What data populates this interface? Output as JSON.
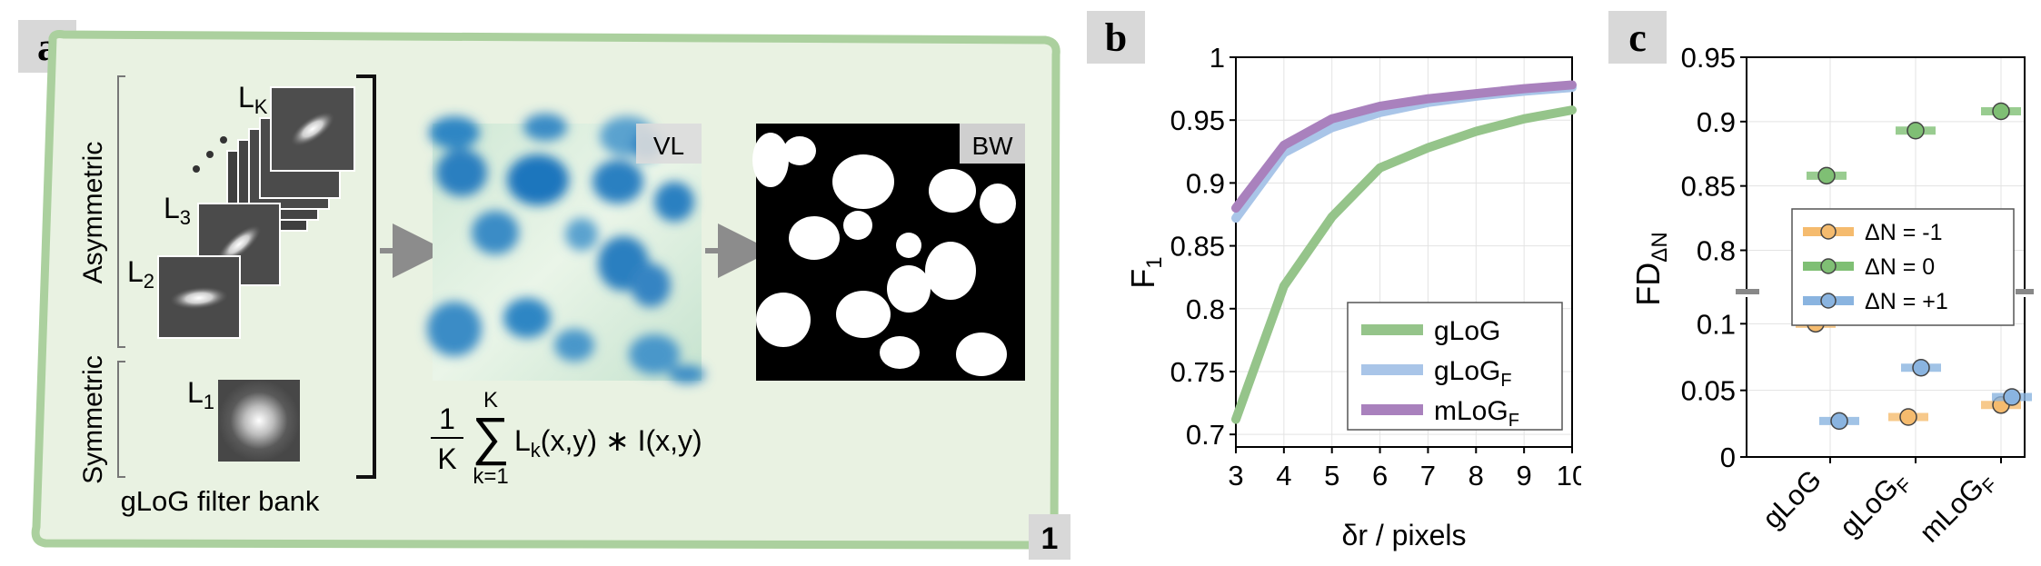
{
  "panel_a": {
    "letter": "a",
    "corner_number": "1",
    "groups": {
      "asymmetric": "Asymmetric",
      "symmetric": "Symmetric"
    },
    "filters": [
      {
        "label": "L",
        "sub": "K",
        "angle": -35
      },
      {
        "label": "L",
        "sub": "3",
        "angle": -55
      },
      {
        "label": "L",
        "sub": "2",
        "angle": -10
      },
      {
        "label": "L",
        "sub": "1",
        "angle": 0
      }
    ],
    "ellipsis": "⋱",
    "caption": "gLoG filter bank",
    "image_vl": "VL",
    "image_bw": "BW",
    "formula": {
      "numerator": "1",
      "denominator": "K",
      "sum_upper": "K",
      "sum_lower": "k=1",
      "sigma": "∑",
      "kernel": "L",
      "kernel_sub": "k",
      "body": "(x,y) ∗ I(x,y)"
    },
    "colors": {
      "frame": "#a6cc98",
      "frame_fill": "#e8f1e0"
    }
  },
  "panel_b": {
    "letter": "b",
    "chart_data": {
      "type": "line",
      "xlabel": "δr / pixels",
      "ylabel": "F",
      "ylabel_sub": "1",
      "x": [
        3,
        4,
        5,
        6,
        7,
        8,
        9,
        10
      ],
      "xlim": [
        3,
        10
      ],
      "ylim": [
        0.69,
        1.0
      ],
      "yticks": [
        "0.7",
        "0.75",
        "0.8",
        "0.85",
        "0.9",
        "0.95",
        "1"
      ],
      "xticks": [
        "3",
        "4",
        "5",
        "6",
        "7",
        "8",
        "9",
        "10"
      ],
      "grid": true,
      "legend_position": "lower-right",
      "series": [
        {
          "name": "gLoG",
          "sub": "",
          "color": "#95c48a",
          "values": [
            0.712,
            0.818,
            0.873,
            0.912,
            0.928,
            0.941,
            0.951,
            0.958
          ]
        },
        {
          "name": "gLoG",
          "sub": "F",
          "color": "#a9c5e8",
          "values": [
            0.872,
            0.924,
            0.944,
            0.956,
            0.964,
            0.969,
            0.973,
            0.976
          ]
        },
        {
          "name": "mLoG",
          "sub": "F",
          "color": "#a981bd",
          "values": [
            0.88,
            0.93,
            0.951,
            0.961,
            0.967,
            0.971,
            0.975,
            0.978
          ]
        }
      ]
    }
  },
  "panel_c": {
    "letter": "c",
    "chart_data": {
      "type": "scatter",
      "ylabel": "FD",
      "ylabel_sub": "ΔN",
      "categories": [
        "gLoG",
        "gLoGF",
        "mLoGF"
      ],
      "category_labels": [
        {
          "main": "gLoG",
          "sub": ""
        },
        {
          "main": "gLoG",
          "sub": "F"
        },
        {
          "main": "mLoG",
          "sub": "F"
        }
      ],
      "broken_axis": true,
      "upper_ylim": [
        0.77,
        0.95
      ],
      "upper_yticks": [
        "0.8",
        "0.85",
        "0.9",
        "0.95"
      ],
      "lower_ylim": [
        0,
        0.12
      ],
      "lower_yticks": [
        "0",
        "0.05",
        "0.1"
      ],
      "grid": true,
      "legend_position": "center-right",
      "series": [
        {
          "name": "ΔN = -1",
          "color": "#f5bb6e",
          "values": [
            0.1,
            0.03,
            0.039
          ]
        },
        {
          "name": "ΔN = 0",
          "color": "#7fbf74",
          "values": [
            0.858,
            0.893,
            0.908
          ]
        },
        {
          "name": "ΔN = +1",
          "color": "#8ab4e0",
          "values": [
            0.027,
            0.067,
            0.045
          ]
        }
      ]
    }
  }
}
